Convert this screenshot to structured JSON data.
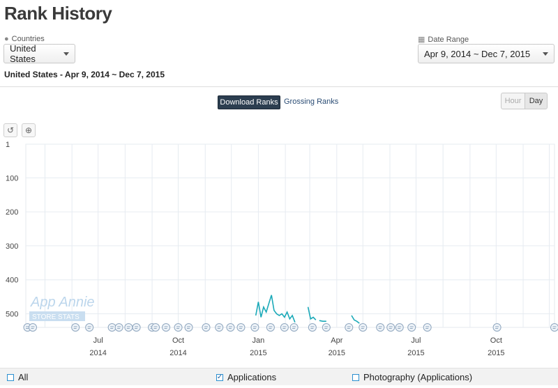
{
  "page": {
    "title": "Rank History"
  },
  "filters": {
    "countries_label": "Countries",
    "countries_value": "United States",
    "date_range_label": "Date Range",
    "date_range_value": "Apr 9, 2014 ~ Dec 7, 2015"
  },
  "subtitle": "United States - Apr 9, 2014 ~ Dec 7, 2015",
  "rank_tabs": {
    "download": "Download Ranks",
    "grossing": "Grossing Ranks"
  },
  "granularity": {
    "hour": "Hour",
    "day": "Day"
  },
  "tools": {
    "reset": "↺",
    "zoom": "⊕"
  },
  "watermark": {
    "line1": "App Annie",
    "line2": "STORE STATS"
  },
  "legend": {
    "all": "All",
    "applications": "Applications",
    "photography": "Photography (Applications)",
    "applications_checked": "✓"
  },
  "colors": {
    "series": "#1aa9b8",
    "dark_button": "#2c3e50",
    "grid": "#dde3ea"
  },
  "chart_data": {
    "type": "line",
    "yaxis": {
      "inverted": true,
      "ticks": [
        "1",
        "100",
        "200",
        "300",
        "400",
        "500"
      ],
      "range": [
        1,
        540
      ]
    },
    "xaxis_ticks": [
      {
        "month": "Jul",
        "year": "2014",
        "date": "2014-07-01"
      },
      {
        "month": "Oct",
        "year": "2014",
        "date": "2014-10-01"
      },
      {
        "month": "Jan",
        "year": "2015",
        "date": "2015-01-01"
      },
      {
        "month": "Apr",
        "year": "2015",
        "date": "2015-04-01"
      },
      {
        "month": "Jul",
        "year": "2015",
        "date": "2015-07-01"
      },
      {
        "month": "Oct",
        "year": "2015",
        "date": "2015-10-01"
      }
    ],
    "x_range": [
      "2014-04-09",
      "2015-12-07"
    ],
    "series": [
      {
        "segments": [
          [
            [
              "2014-12-29",
              505
            ],
            [
              "2015-01-01",
              465
            ],
            [
              "2015-01-04",
              510
            ],
            [
              "2015-01-07",
              480
            ],
            [
              "2015-01-10",
              495
            ],
            [
              "2015-01-13",
              470
            ],
            [
              "2015-01-16",
              445
            ],
            [
              "2015-01-19",
              490
            ],
            [
              "2015-01-22",
              500
            ],
            [
              "2015-01-25",
              505
            ],
            [
              "2015-01-28",
              500
            ],
            [
              "2015-01-31",
              510
            ],
            [
              "2015-02-03",
              495
            ],
            [
              "2015-02-06",
              515
            ],
            [
              "2015-02-09",
              505
            ],
            [
              "2015-02-12",
              525
            ]
          ],
          [
            [
              "2015-02-27",
              480
            ],
            [
              "2015-03-02",
              515
            ],
            [
              "2015-03-05",
              510
            ],
            [
              "2015-03-08",
              518
            ]
          ],
          [
            [
              "2015-03-12",
              520
            ],
            [
              "2015-03-16",
              522
            ],
            [
              "2015-03-20",
              522
            ]
          ],
          [
            [
              "2015-04-18",
              505
            ],
            [
              "2015-04-21",
              518
            ],
            [
              "2015-04-24",
              522
            ],
            [
              "2015-04-27",
              528
            ]
          ]
        ]
      }
    ],
    "event_markers": [
      "2014-04-11",
      "2014-04-17",
      "2014-06-05",
      "2014-06-21",
      "2014-07-17",
      "2014-07-25",
      "2014-08-05",
      "2014-08-14",
      "2014-09-01",
      "2014-09-05",
      "2014-09-17",
      "2014-10-01",
      "2014-10-13",
      "2014-11-02",
      "2014-11-17",
      "2014-11-30",
      "2014-12-12",
      "2014-12-28",
      "2015-01-15",
      "2015-01-31",
      "2015-02-11",
      "2015-03-04",
      "2015-03-20",
      "2015-04-15",
      "2015-05-01",
      "2015-05-21",
      "2015-06-02",
      "2015-06-12",
      "2015-06-26",
      "2015-07-14",
      "2015-10-02",
      "2015-12-07"
    ]
  }
}
